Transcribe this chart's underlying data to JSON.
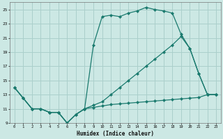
{
  "xlabel": "Humidex (Indice chaleur)",
  "bg_color": "#cce8e4",
  "grid_color": "#aacfcb",
  "line_color": "#1a7a6e",
  "x_min": -0.5,
  "x_max": 23.5,
  "y_min": 9,
  "y_max": 26,
  "yticks": [
    9,
    11,
    13,
    15,
    17,
    19,
    21,
    23,
    25
  ],
  "xticks": [
    0,
    1,
    2,
    3,
    4,
    5,
    6,
    7,
    8,
    9,
    10,
    11,
    12,
    13,
    14,
    15,
    16,
    17,
    18,
    19,
    20,
    21,
    22,
    23
  ],
  "line_top_x": [
    0,
    1,
    2,
    3,
    4,
    5,
    6,
    7,
    8,
    9,
    10,
    11,
    12,
    13,
    14,
    15,
    16,
    17,
    18,
    19,
    20,
    21,
    22,
    23
  ],
  "line_top_y": [
    14,
    12.5,
    11,
    11,
    10.5,
    10.5,
    9,
    10.2,
    11,
    20,
    24,
    24.2,
    24,
    24.5,
    24.8,
    25.3,
    25.0,
    24.8,
    24.5,
    21.5,
    19.5,
    16,
    13,
    13
  ],
  "line_mid_x": [
    0,
    1,
    2,
    3,
    4,
    5,
    6,
    7,
    8,
    9,
    10,
    11,
    12,
    13,
    14,
    15,
    16,
    17,
    18,
    19,
    20,
    21,
    22,
    23
  ],
  "line_mid_y": [
    14,
    12.5,
    11,
    11,
    10.5,
    10.5,
    9,
    10.2,
    11,
    11.5,
    12,
    13,
    14,
    15,
    16,
    17,
    18,
    19,
    20,
    21.2,
    19.5,
    16,
    13,
    13
  ],
  "line_bot_x": [
    0,
    1,
    2,
    3,
    4,
    5,
    6,
    7,
    8,
    9,
    10,
    11,
    12,
    13,
    14,
    15,
    16,
    17,
    18,
    19,
    20,
    21,
    22,
    23
  ],
  "line_bot_y": [
    14,
    12.5,
    11,
    11,
    10.5,
    10.5,
    9,
    10.2,
    11,
    11.2,
    11.4,
    11.6,
    11.7,
    11.8,
    11.9,
    12.0,
    12.1,
    12.2,
    12.3,
    12.4,
    12.5,
    12.6,
    13,
    13
  ]
}
